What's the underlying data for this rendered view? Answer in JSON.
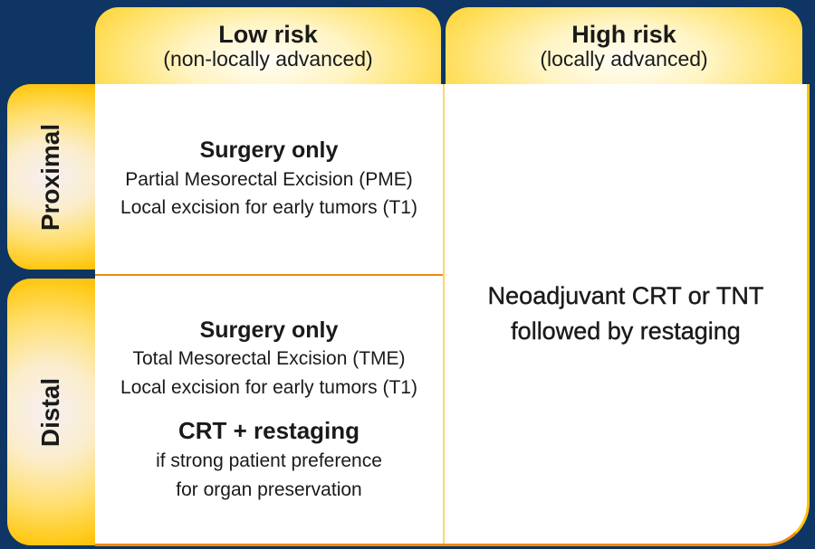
{
  "palette": {
    "background": "#0E3564",
    "gold_edge": "#FFC30B",
    "divider_vertical": "#FFD766",
    "divider_horizontal": "#F08A0C",
    "cell_bg": "#FFFFFF",
    "text": "#1A1A1A"
  },
  "columns": [
    {
      "title": "Low risk",
      "subtitle": "(non-locally advanced)"
    },
    {
      "title": "High risk",
      "subtitle": "(locally advanced)"
    }
  ],
  "rows": [
    {
      "label": "Proximal"
    },
    {
      "label": "Distal"
    }
  ],
  "cells": {
    "proximal_low": {
      "heading": "Surgery only",
      "lines": [
        "Partial Mesorectal Excision (PME)",
        "Local excision for early tumors (T1)"
      ]
    },
    "distal_low": {
      "heading": "Surgery only",
      "lines": [
        "Total Mesorectal Excision (TME)",
        "Local excision for early tumors (T1)"
      ],
      "heading2": "CRT + restaging",
      "lines2": [
        "if strong patient preference",
        "for organ preservation"
      ]
    },
    "high": {
      "lines": [
        "Neoadjuvant CRT or TNT",
        "followed by restaging"
      ]
    }
  }
}
